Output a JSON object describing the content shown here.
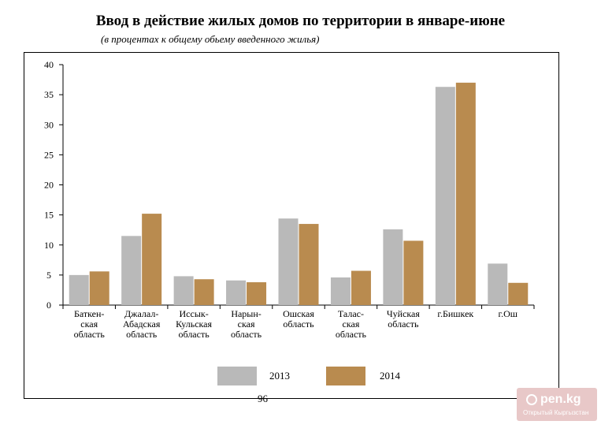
{
  "title": "Ввод в действие жилых домов по территории в январе-июне",
  "subtitle": "(в процентах к общему обьему введенного жилья)",
  "page_number": "96",
  "watermark": {
    "logo": "pen.kg",
    "caption": "Открытый Кыргызстан"
  },
  "colors": {
    "series_2013": "#b9b9b9",
    "series_2014": "#b98b4f"
  },
  "chart_data": {
    "type": "bar",
    "title": "Ввод в действие жилых домов по территории в январе-июне",
    "subtitle": "(в процентах к общему обьему введенного жилья)",
    "categories": [
      [
        "Баткен-",
        "ская",
        "область"
      ],
      [
        "Джалал-",
        "Абадская",
        "область"
      ],
      [
        "Иссык-",
        "Кульская",
        "область"
      ],
      [
        "Нарын-",
        "ская",
        "область"
      ],
      [
        "Ошская",
        "область"
      ],
      [
        "Талас-",
        "ская",
        "область"
      ],
      [
        "Чуйская",
        "область"
      ],
      [
        "г.Бишкек"
      ],
      [
        "г.Ош"
      ]
    ],
    "series": [
      {
        "name": "2013",
        "values": [
          5.0,
          11.5,
          4.8,
          4.1,
          14.4,
          4.6,
          12.6,
          36.3,
          6.9
        ]
      },
      {
        "name": "2014",
        "values": [
          5.6,
          15.2,
          4.3,
          3.8,
          13.5,
          5.7,
          10.7,
          37.0,
          3.7
        ]
      }
    ],
    "ylim": [
      0,
      40
    ],
    "yticks": [
      "0",
      "5",
      "10",
      "15",
      "20",
      "25",
      "30",
      "35",
      "40"
    ],
    "legend_position": "bottom",
    "grid": false
  }
}
